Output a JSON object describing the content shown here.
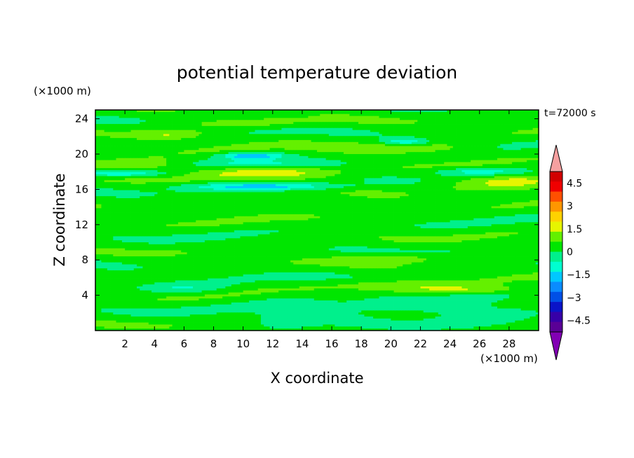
{
  "chart_data": {
    "type": "heatmap",
    "title": "potential temperature deviation",
    "time_label": "t=72000 s",
    "xlabel": "X coordinate",
    "ylabel": "Z coordinate",
    "x_unit": "(×1000 m)",
    "y_unit": "(×1000 m)",
    "xlim": [
      0,
      30
    ],
    "ylim": [
      0,
      25
    ],
    "x_ticks": [
      "2",
      "4",
      "6",
      "8",
      "10",
      "12",
      "14",
      "16",
      "18",
      "20",
      "22",
      "24",
      "26",
      "28"
    ],
    "y_ticks": [
      "4",
      "8",
      "12",
      "16",
      "20",
      "24"
    ],
    "colorbar": {
      "levels": [
        -5.25,
        -4.5,
        -3.75,
        -3,
        -2.25,
        -1.5,
        -0.75,
        0,
        0.75,
        1.5,
        2.25,
        3,
        3.75,
        4.5,
        5.25
      ],
      "colors": [
        "#5a0096",
        "#3700a8",
        "#0a14c8",
        "#0050e6",
        "#0a8cff",
        "#00c8ff",
        "#00ffd0",
        "#00f08c",
        "#00e600",
        "#64f000",
        "#e6f500",
        "#ffd200",
        "#ff9600",
        "#ff5000",
        "#f00000",
        "#d20000"
      ],
      "under_color": "#8200b4",
      "over_color": "#f5a0a0",
      "tick_labels": [
        "4.5",
        "3",
        "1.5",
        "0",
        "−1.5",
        "−3",
        "−4.5"
      ],
      "tick_values": [
        4.5,
        3,
        1.5,
        0,
        -1.5,
        -3,
        -4.5
      ]
    }
  }
}
